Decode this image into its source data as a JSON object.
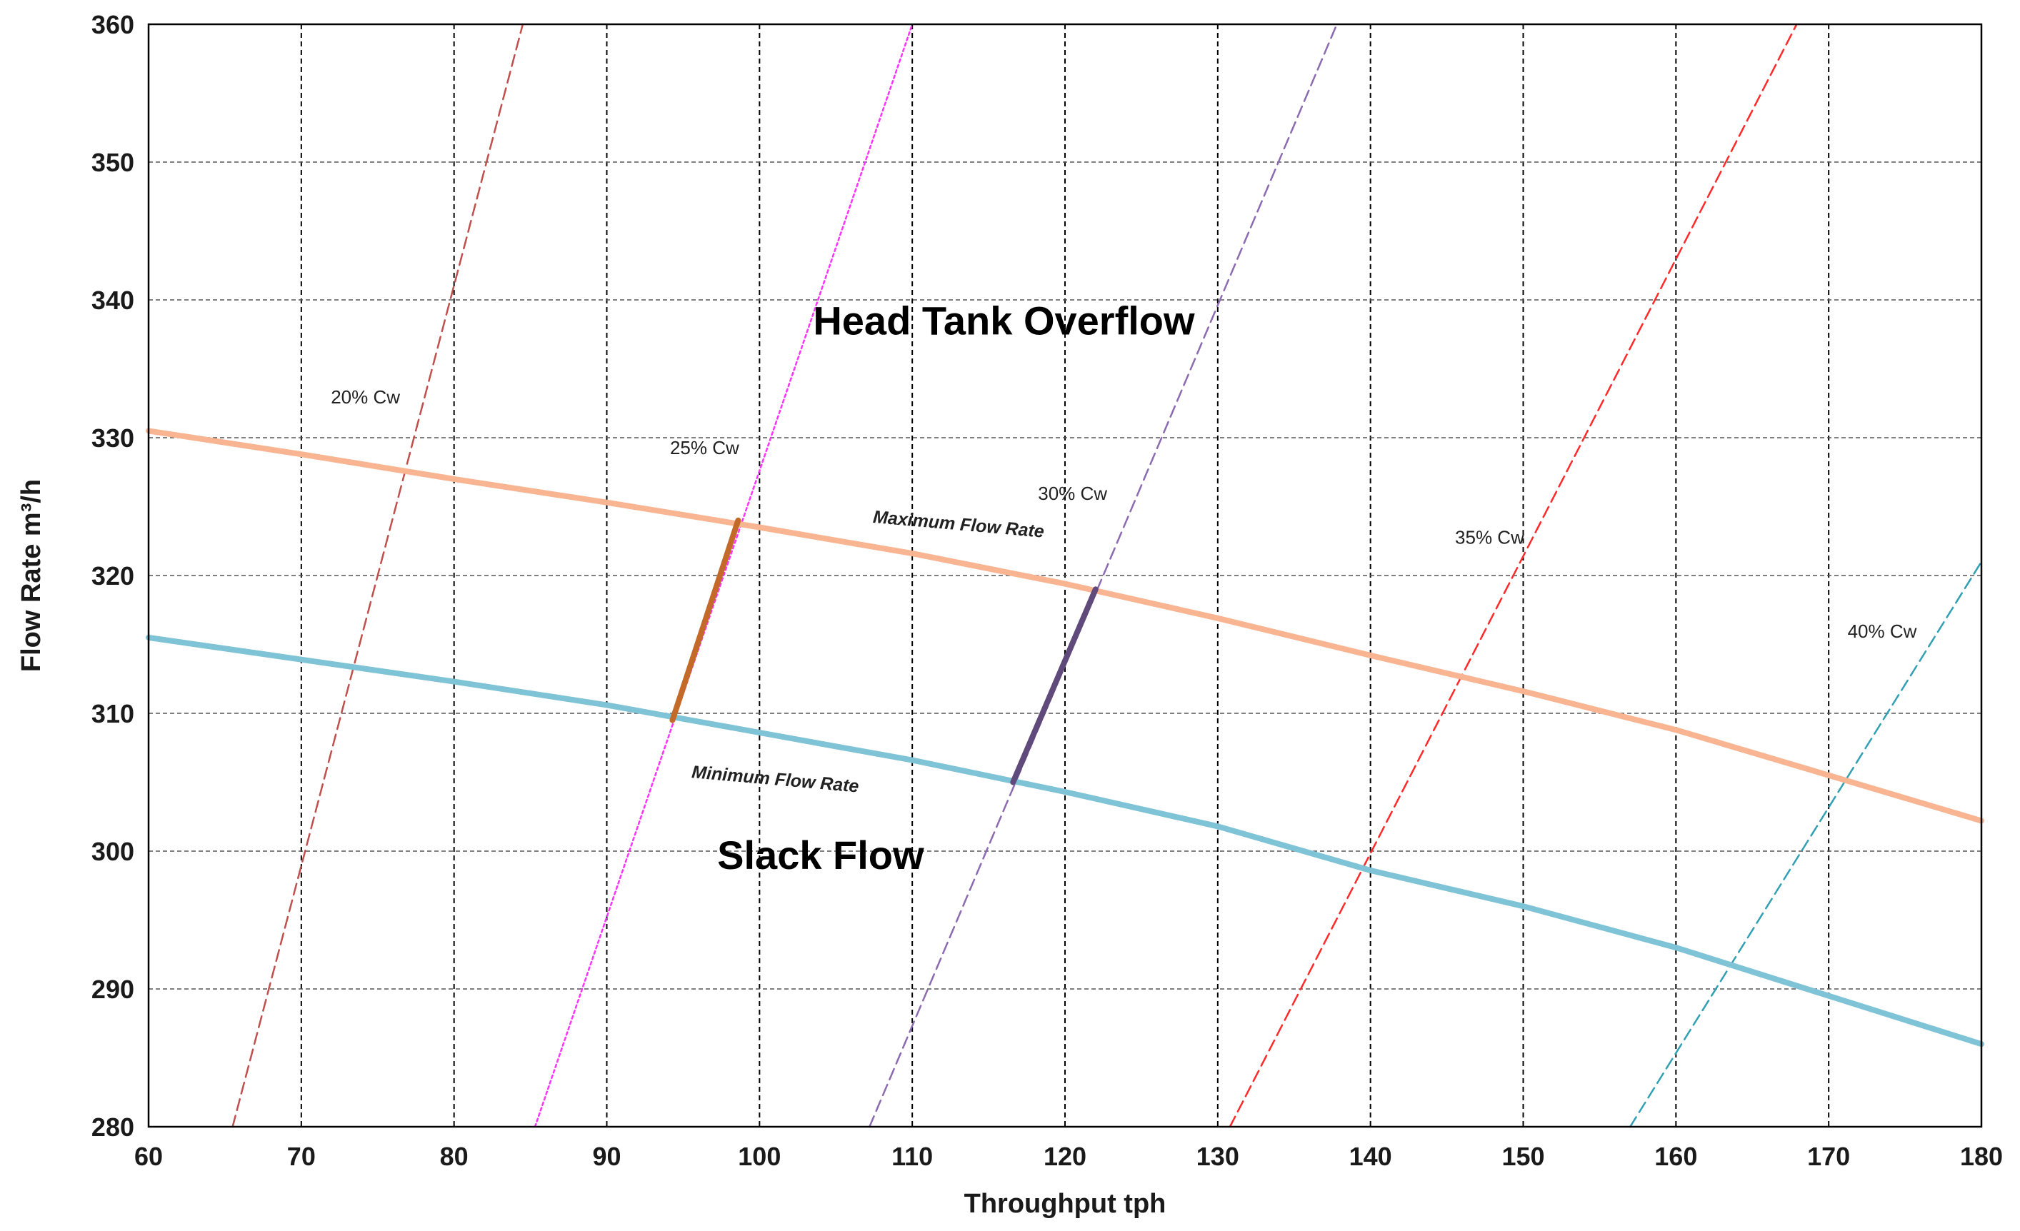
{
  "chart_data": {
    "type": "line",
    "xlabel": "Throughput tph",
    "ylabel": "Flow Rate  m³/h",
    "xlim": [
      60,
      180
    ],
    "ylim": [
      280,
      360
    ],
    "x_ticks": [
      60,
      70,
      80,
      90,
      100,
      110,
      120,
      130,
      140,
      150,
      160,
      170,
      180
    ],
    "y_ticks": [
      280,
      290,
      300,
      310,
      320,
      330,
      340,
      350,
      360
    ],
    "grid": true,
    "series": [
      {
        "name": "Maximum Flow Rate",
        "color": "#f9b491",
        "style": "solid-thick",
        "x": [
          60,
          70,
          80,
          90,
          100,
          110,
          120,
          130,
          140,
          150,
          160,
          170,
          180
        ],
        "y": [
          330.5,
          328.8,
          327.0,
          325.3,
          323.5,
          321.6,
          319.4,
          316.9,
          314.2,
          311.6,
          308.8,
          305.5,
          302.2
        ]
      },
      {
        "name": "Minimum Flow Rate",
        "color": "#7ec3d6",
        "style": "solid-thick",
        "x": [
          60,
          70,
          80,
          90,
          100,
          110,
          120,
          130,
          140,
          150,
          160,
          170,
          180
        ],
        "y": [
          315.5,
          313.9,
          312.3,
          310.6,
          308.6,
          306.6,
          304.3,
          301.8,
          298.6,
          296.0,
          293.0,
          289.5,
          286.0
        ]
      },
      {
        "name": "20% Cw",
        "color": "#c0504d",
        "style": "dashed",
        "x": [
          65.5,
          84.5
        ],
        "y": [
          280,
          360
        ]
      },
      {
        "name": "25% Cw",
        "color": "#ff33ff",
        "style": "dotted",
        "x": [
          85.3,
          110.0
        ],
        "y": [
          280,
          360
        ]
      },
      {
        "name": "30% Cw",
        "color": "#8c6bb1",
        "style": "dashed",
        "x": [
          107.2,
          137.8
        ],
        "y": [
          280,
          360
        ]
      },
      {
        "name": "35% Cw",
        "color": "#ff2a2a",
        "style": "dashed",
        "x": [
          130.8,
          167.9
        ],
        "y": [
          280,
          360
        ]
      },
      {
        "name": "40% Cw",
        "color": "#31a0b4",
        "style": "dashed",
        "x": [
          157.0,
          180.0
        ],
        "y": [
          280,
          321.0
        ]
      },
      {
        "name": "25% Cw operating range",
        "color": "#c46a29",
        "style": "solid-thick",
        "x": [
          94.3,
          98.6
        ],
        "y": [
          309.5,
          324.0
        ]
      },
      {
        "name": "30% Cw operating range",
        "color": "#604a7b",
        "style": "solid-thick",
        "x": [
          116.6,
          122.0
        ],
        "y": [
          305.0,
          319.0
        ]
      }
    ],
    "annotations": [
      {
        "text": "Head Tank Overflow",
        "x": 116,
        "y": 337.5,
        "kind": "region"
      },
      {
        "text": "Slack Flow",
        "x": 104,
        "y": 298.7,
        "kind": "region"
      },
      {
        "text": "Maximum Flow Rate",
        "x": 113,
        "y": 323.3,
        "kind": "curve"
      },
      {
        "text": "Minimum Flow Rate",
        "x": 101,
        "y": 304.8,
        "kind": "curve"
      },
      {
        "text": "20% Cw",
        "x": 74.2,
        "y": 332.5,
        "kind": "cw"
      },
      {
        "text": "25% Cw",
        "x": 96.4,
        "y": 328.8,
        "kind": "cw"
      },
      {
        "text": "30% Cw",
        "x": 120.5,
        "y": 325.5,
        "kind": "cw"
      },
      {
        "text": "35% Cw",
        "x": 147.8,
        "y": 322.3,
        "kind": "cw"
      },
      {
        "text": "40% Cw",
        "x": 173.5,
        "y": 315.5,
        "kind": "cw"
      }
    ]
  }
}
